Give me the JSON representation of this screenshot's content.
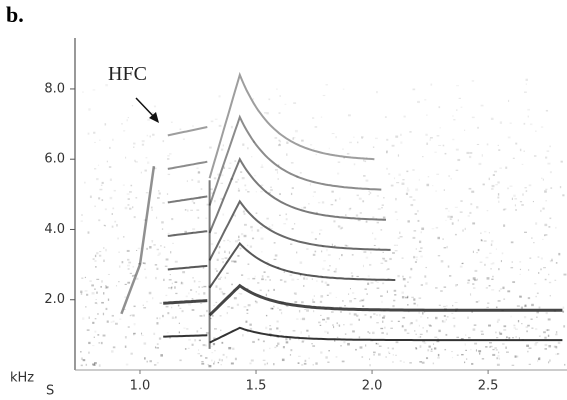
{
  "panel_label": "b.",
  "chart_data": {
    "type": "spectrogram",
    "annotation": "HFC",
    "y_label": "kHz",
    "x_label": "S",
    "xlim": [
      0.72,
      2.84
    ],
    "ylim": [
      0,
      9.45
    ],
    "xticks": [
      {
        "value": 1,
        "label": "1.0"
      },
      {
        "value": 1.5,
        "label": "1.5"
      },
      {
        "value": 2,
        "label": "2.0"
      },
      {
        "value": 2.5,
        "label": "2.5"
      }
    ],
    "yticks": [
      {
        "value": 2,
        "label": "2.0"
      },
      {
        "value": 4,
        "label": "4.0"
      },
      {
        "value": 6,
        "label": "6.0"
      },
      {
        "value": 8,
        "label": "8.0"
      }
    ],
    "color": "#222222"
  }
}
